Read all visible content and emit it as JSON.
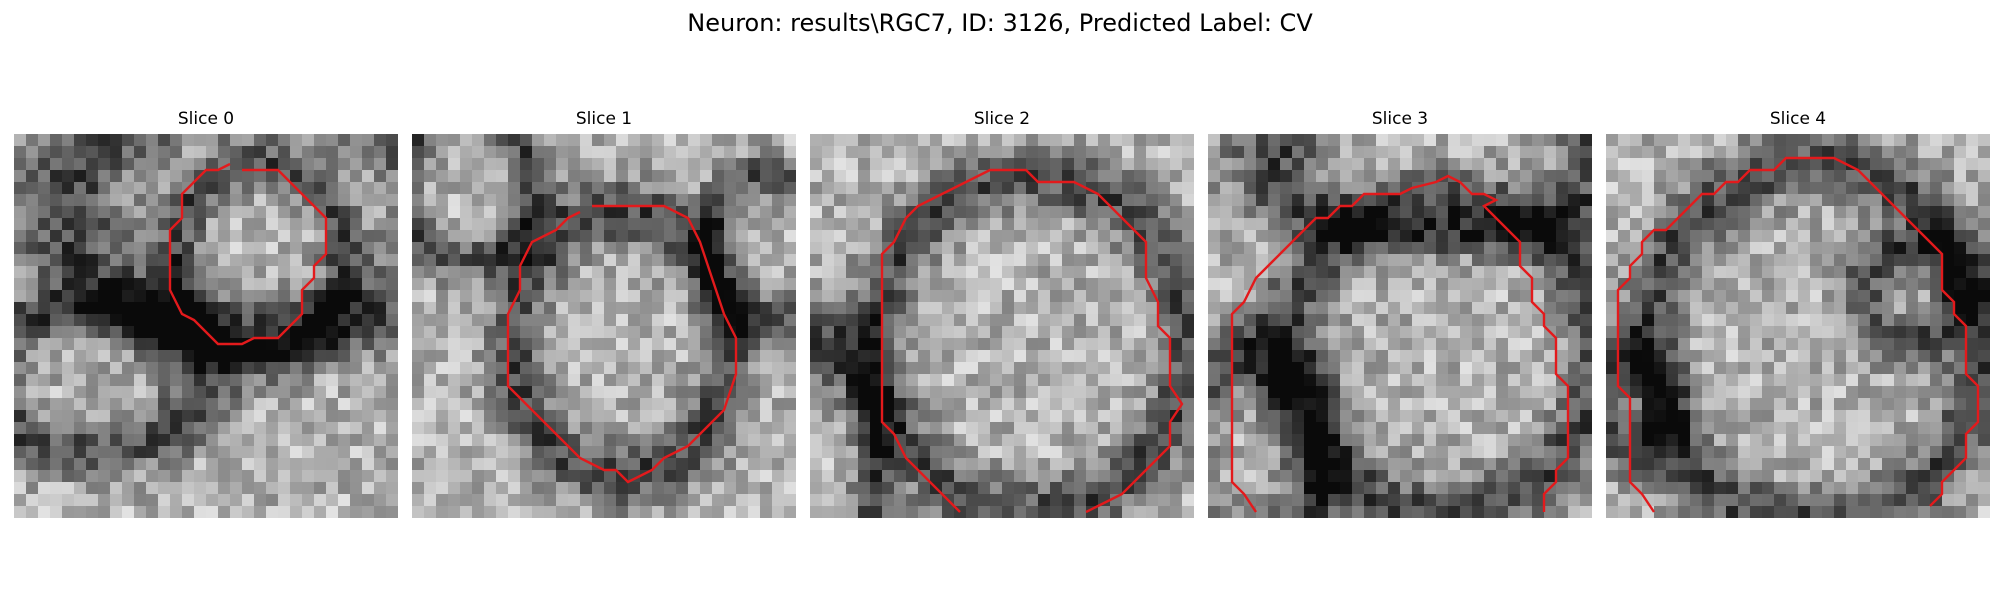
{
  "figure": {
    "title": "Neuron: results\\RGC7, ID: 3126, Predicted Label: CV"
  },
  "slices": [
    {
      "label": "Slice 0"
    },
    {
      "label": "Slice 1"
    },
    {
      "label": "Slice 2"
    },
    {
      "label": "Slice 3"
    },
    {
      "label": "Slice 4"
    }
  ],
  "colors": {
    "contour": "#e31a1c",
    "background": "#ffffff"
  },
  "image": {
    "colormap": "grayscale",
    "grid": "32 x 32 pixels per slice"
  }
}
